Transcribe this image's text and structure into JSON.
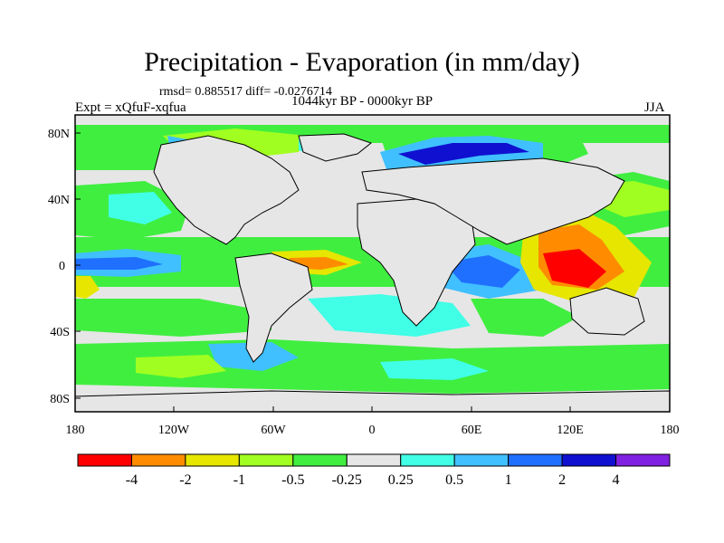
{
  "header": {
    "title": "Precipitation - Evaporation (in mm/day)",
    "stats": "rmsd= 0.885517 diff= -0.0276714",
    "experiment": "Expt = xQfuF-xqfua",
    "period": "1044kyr BP - 0000kyr BP",
    "season": "JJA"
  },
  "map": {
    "lat_ticks": [
      "80N",
      "40N",
      "0",
      "40S",
      "80S"
    ],
    "lon_ticks": [
      "180",
      "120W",
      "60W",
      "0",
      "60E",
      "120E",
      "180"
    ]
  },
  "colorbar": {
    "colors": [
      "#ff0000",
      "#ff8c00",
      "#e6e600",
      "#a0ff20",
      "#40ee40",
      "#e6e6e6",
      "#40ffe6",
      "#40c0ff",
      "#2070ff",
      "#1010d0",
      "#8020e0"
    ],
    "labels": [
      "-4",
      "-2",
      "-1",
      "-0.5",
      "-0.25",
      "0.25",
      "0.5",
      "1",
      "2",
      "4"
    ]
  }
}
